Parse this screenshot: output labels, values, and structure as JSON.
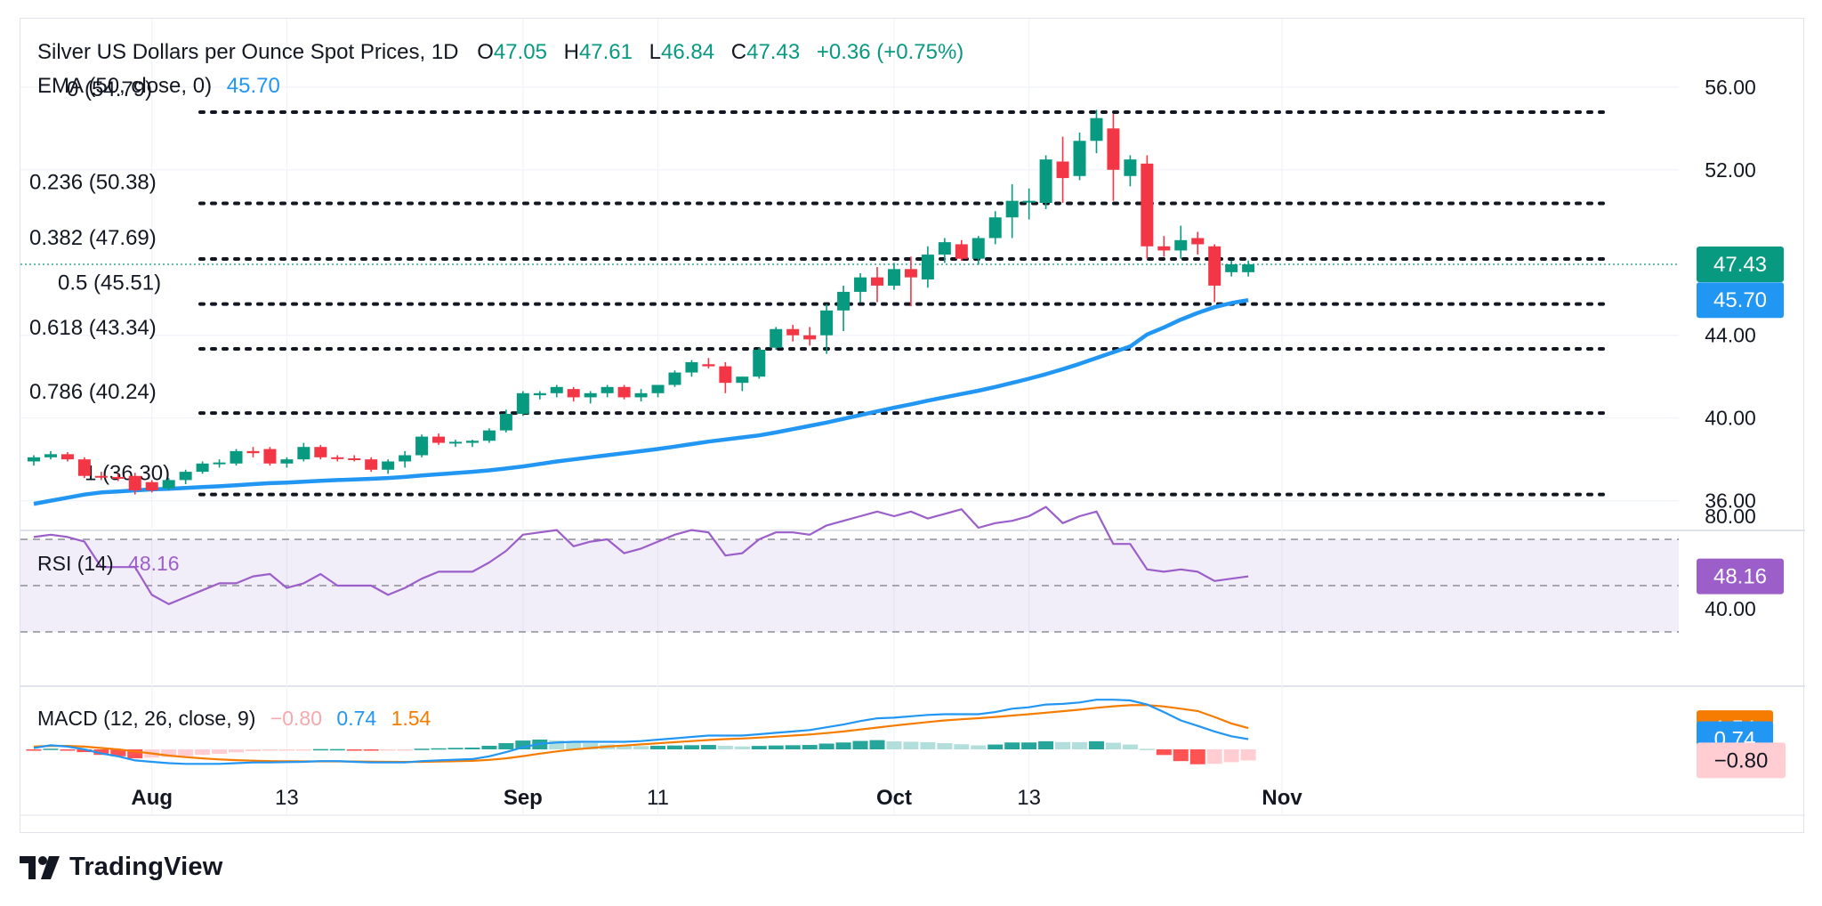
{
  "header": {
    "title": "Silver US Dollars per Ounce Spot Prices, 1D",
    "o_label": "O",
    "o_value": "47.05",
    "h_label": "H",
    "h_value": "47.61",
    "l_label": "L",
    "l_value": "46.84",
    "c_label": "C",
    "c_value": "47.43",
    "change": "+0.36 (+0.75%)",
    "ema_label": "EMA (50, close, 0)",
    "ema_value": "45.70"
  },
  "rsi_header": {
    "label": "RSI (14)",
    "value": "48.16"
  },
  "macd_header": {
    "label": "MACD (12, 26, close, 9)",
    "hist": "−0.80",
    "macd": "0.74",
    "signal": "1.54"
  },
  "brand": {
    "name": "TradingView"
  },
  "colors": {
    "up": "#089981",
    "down": "#f23645",
    "ema": "#2196f3",
    "rsi": "#9c5fc9",
    "macd": "#2196f3",
    "signal": "#f57c00",
    "hist_up_strong": "#26a69a",
    "hist_up_weak": "#b2dfdb",
    "hist_down_strong": "#ff5252",
    "hist_down_weak": "#ffcdd2"
  },
  "chart_data": {
    "type": "candlestick",
    "title": "Silver US Dollars per Ounce Spot Prices, 1D",
    "price_axis": {
      "ticks": [
        "56.00",
        "52.00",
        "44.00",
        "40.00",
        "36.00"
      ],
      "ylim": [
        34.5,
        57.5
      ]
    },
    "x_ticks": [
      {
        "label": "Aug",
        "bold": true,
        "index": 7
      },
      {
        "label": "13",
        "bold": false,
        "index": 15
      },
      {
        "label": "Sep",
        "bold": true,
        "index": 29
      },
      {
        "label": "11",
        "bold": false,
        "index": 37
      },
      {
        "label": "Oct",
        "bold": true,
        "index": 51
      },
      {
        "label": "13",
        "bold": false,
        "index": 59
      },
      {
        "label": "Nov",
        "bold": true,
        "index": 74
      }
    ],
    "candles": [
      [
        37.9,
        38.2,
        37.7,
        38.1
      ],
      [
        38.1,
        38.4,
        38.0,
        38.25
      ],
      [
        38.25,
        38.35,
        37.9,
        38.0
      ],
      [
        38.0,
        38.1,
        37.1,
        37.2
      ],
      [
        37.2,
        37.4,
        37.0,
        37.15
      ],
      [
        37.15,
        37.3,
        36.95,
        37.1
      ],
      [
        37.2,
        37.35,
        36.3,
        36.5
      ],
      [
        36.9,
        37.0,
        36.4,
        36.5
      ],
      [
        36.6,
        37.1,
        36.5,
        37.0
      ],
      [
        37.0,
        37.5,
        36.8,
        37.4
      ],
      [
        37.4,
        37.9,
        37.3,
        37.8
      ],
      [
        37.8,
        38.0,
        37.6,
        37.85
      ],
      [
        37.8,
        38.5,
        37.7,
        38.4
      ],
      [
        38.4,
        38.6,
        38.1,
        38.3
      ],
      [
        38.5,
        38.6,
        37.7,
        37.8
      ],
      [
        37.8,
        38.1,
        37.6,
        38.0
      ],
      [
        38.0,
        38.8,
        37.9,
        38.6
      ],
      [
        38.6,
        38.7,
        38.0,
        38.1
      ],
      [
        38.1,
        38.2,
        37.9,
        38.05
      ],
      [
        38.05,
        38.2,
        37.9,
        38.0
      ],
      [
        38.0,
        38.1,
        37.4,
        37.5
      ],
      [
        37.5,
        38.0,
        37.3,
        37.9
      ],
      [
        37.9,
        38.4,
        37.6,
        38.2
      ],
      [
        38.2,
        39.2,
        38.1,
        39.1
      ],
      [
        39.1,
        39.25,
        38.7,
        38.8
      ],
      [
        38.8,
        38.95,
        38.6,
        38.85
      ],
      [
        38.8,
        38.95,
        38.6,
        38.9
      ],
      [
        38.9,
        39.5,
        38.8,
        39.4
      ],
      [
        39.4,
        40.4,
        39.3,
        40.2
      ],
      [
        40.2,
        41.3,
        40.1,
        41.2
      ],
      [
        41.1,
        41.3,
        40.9,
        41.2
      ],
      [
        41.2,
        41.6,
        41.0,
        41.5
      ],
      [
        41.4,
        41.5,
        40.8,
        41.0
      ],
      [
        41.0,
        41.3,
        40.7,
        41.2
      ],
      [
        41.2,
        41.6,
        41.0,
        41.5
      ],
      [
        41.5,
        41.6,
        40.9,
        41.0
      ],
      [
        41.0,
        41.4,
        40.8,
        41.2
      ],
      [
        41.2,
        41.6,
        41.0,
        41.6
      ],
      [
        41.6,
        42.3,
        41.5,
        42.2
      ],
      [
        42.2,
        42.8,
        42.0,
        42.7
      ],
      [
        42.6,
        42.9,
        42.4,
        42.5
      ],
      [
        42.5,
        42.7,
        41.2,
        41.7
      ],
      [
        41.7,
        42.0,
        41.3,
        42.0
      ],
      [
        42.0,
        43.4,
        41.9,
        43.3
      ],
      [
        43.4,
        44.4,
        43.3,
        44.3
      ],
      [
        44.3,
        44.5,
        43.7,
        44.0
      ],
      [
        44.0,
        44.4,
        43.5,
        43.8
      ],
      [
        44.0,
        45.5,
        43.1,
        45.2
      ],
      [
        45.2,
        46.4,
        44.2,
        46.1
      ],
      [
        46.1,
        47.0,
        45.6,
        46.8
      ],
      [
        46.8,
        47.3,
        45.6,
        46.4
      ],
      [
        46.4,
        47.5,
        46.2,
        47.2
      ],
      [
        47.2,
        47.8,
        45.4,
        46.8
      ],
      [
        46.7,
        48.3,
        46.3,
        47.9
      ],
      [
        47.9,
        48.7,
        47.5,
        48.5
      ],
      [
        48.4,
        48.6,
        47.6,
        47.7
      ],
      [
        47.7,
        48.8,
        47.4,
        48.7
      ],
      [
        48.7,
        50.0,
        48.4,
        49.7
      ],
      [
        49.7,
        51.3,
        48.7,
        50.5
      ],
      [
        50.5,
        51.1,
        49.6,
        50.5
      ],
      [
        50.4,
        52.7,
        50.1,
        52.5
      ],
      [
        52.4,
        53.6,
        50.4,
        51.6
      ],
      [
        51.7,
        53.8,
        51.5,
        53.4
      ],
      [
        53.4,
        54.9,
        52.8,
        54.5
      ],
      [
        54.0,
        54.7,
        50.5,
        52.0
      ],
      [
        51.7,
        52.7,
        51.2,
        52.5
      ],
      [
        52.3,
        52.7,
        47.7,
        48.3
      ],
      [
        48.3,
        48.8,
        47.8,
        48.1
      ],
      [
        48.1,
        49.3,
        47.7,
        48.6
      ],
      [
        48.7,
        49.0,
        47.9,
        48.4
      ],
      [
        48.3,
        48.4,
        45.6,
        46.4
      ],
      [
        47.05,
        47.61,
        46.84,
        47.43
      ],
      [
        47.05,
        47.61,
        46.84,
        47.43
      ]
    ],
    "ema": {
      "name": "EMA (50, close, 0)",
      "last": 45.7,
      "values": [
        35.85,
        36.0,
        36.15,
        36.3,
        36.4,
        36.45,
        36.5,
        36.55,
        36.58,
        36.62,
        36.66,
        36.7,
        36.75,
        36.8,
        36.85,
        36.88,
        36.92,
        36.96,
        37.0,
        37.03,
        37.06,
        37.1,
        37.15,
        37.22,
        37.28,
        37.34,
        37.4,
        37.47,
        37.56,
        37.66,
        37.78,
        37.9,
        38.0,
        38.1,
        38.2,
        38.3,
        38.4,
        38.5,
        38.62,
        38.74,
        38.86,
        38.96,
        39.06,
        39.16,
        39.3,
        39.46,
        39.62,
        39.78,
        39.96,
        40.14,
        40.32,
        40.5,
        40.66,
        40.84,
        41.0,
        41.16,
        41.32,
        41.5,
        41.7,
        41.9,
        42.12,
        42.36,
        42.62,
        42.9,
        43.18,
        43.46,
        44.04,
        44.38,
        44.76,
        45.08,
        45.36,
        45.56,
        45.7
      ]
    },
    "fibonacci": [
      {
        "label": "0 (54.79)",
        "value": 54.79
      },
      {
        "label": "0.236 (50.38)",
        "value": 50.38
      },
      {
        "label": "0.382 (47.69)",
        "value": 47.69
      },
      {
        "label": "0.5 (45.51)",
        "value": 45.51
      },
      {
        "label": "0.618 (43.34)",
        "value": 43.34
      },
      {
        "label": "0.786 (40.24)",
        "value": 40.24
      },
      {
        "label": "1 (36.30)",
        "value": 36.3
      }
    ],
    "last_close_badge": "47.43",
    "ema_badge": "45.70",
    "rsi": {
      "name": "RSI (14)",
      "ylim": [
        30,
        90
      ],
      "ticks": [
        "80.00",
        "40.00"
      ],
      "bands": [
        70,
        50,
        30
      ],
      "badge": "48.16",
      "values": [
        71,
        72,
        71,
        69,
        58,
        58,
        58,
        46,
        42,
        45,
        48,
        51,
        51,
        54,
        55,
        49,
        51,
        55,
        50,
        50,
        50,
        46,
        49,
        53,
        56,
        56,
        56,
        60,
        65,
        72,
        73,
        74,
        67,
        69,
        70,
        64,
        66,
        69,
        72,
        74,
        73,
        63,
        64,
        70,
        73,
        73,
        72,
        76,
        78,
        80,
        82,
        80,
        82,
        79,
        81,
        83,
        75,
        77,
        78,
        80,
        84,
        77,
        80,
        82,
        68,
        68,
        57,
        56,
        57,
        56,
        52,
        53,
        54
      ]
    },
    "macd": {
      "name": "MACD (12, 26, close, 9)",
      "ylim": [
        -2.7,
        3.9
      ],
      "badges": [
        "1.54",
        "0.74",
        "−0.80"
      ],
      "macd_line": [
        0.1,
        0.3,
        0.2,
        0.0,
        -0.3,
        -0.5,
        -0.8,
        -0.9,
        -1.0,
        -1.05,
        -1.05,
        -1.05,
        -1.0,
        -0.95,
        -0.95,
        -0.92,
        -0.9,
        -0.85,
        -0.85,
        -0.9,
        -0.95,
        -0.95,
        -0.95,
        -0.85,
        -0.8,
        -0.75,
        -0.7,
        -0.5,
        -0.2,
        0.15,
        0.4,
        0.5,
        0.55,
        0.55,
        0.55,
        0.55,
        0.6,
        0.7,
        0.8,
        0.9,
        1.0,
        1.0,
        1.0,
        1.1,
        1.2,
        1.3,
        1.4,
        1.6,
        1.8,
        2.05,
        2.25,
        2.3,
        2.4,
        2.5,
        2.55,
        2.55,
        2.55,
        2.7,
        2.95,
        3.05,
        3.25,
        3.3,
        3.4,
        3.6,
        3.6,
        3.55,
        3.25,
        2.7,
        2.1,
        1.7,
        1.3,
        0.95,
        0.74
      ],
      "signal_line": [
        0.2,
        0.25,
        0.25,
        0.2,
        0.1,
        0.0,
        -0.15,
        -0.3,
        -0.45,
        -0.56,
        -0.65,
        -0.73,
        -0.78,
        -0.82,
        -0.85,
        -0.86,
        -0.87,
        -0.87,
        -0.87,
        -0.88,
        -0.89,
        -0.9,
        -0.91,
        -0.9,
        -0.88,
        -0.86,
        -0.83,
        -0.76,
        -0.65,
        -0.49,
        -0.31,
        -0.15,
        -0.01,
        0.1,
        0.2,
        0.28,
        0.36,
        0.44,
        0.52,
        0.6,
        0.68,
        0.74,
        0.79,
        0.85,
        0.92,
        1.0,
        1.08,
        1.18,
        1.3,
        1.44,
        1.58,
        1.72,
        1.85,
        1.98,
        2.1,
        2.18,
        2.26,
        2.35,
        2.45,
        2.55,
        2.66,
        2.77,
        2.88,
        3.01,
        3.12,
        3.2,
        3.21,
        3.11,
        2.95,
        2.78,
        2.35,
        1.88,
        1.54
      ],
      "histogram": [
        -0.1,
        0.05,
        -0.05,
        -0.2,
        -0.4,
        -0.5,
        -0.65,
        -0.6,
        -0.55,
        -0.49,
        -0.4,
        -0.32,
        -0.22,
        -0.13,
        -0.1,
        -0.06,
        -0.03,
        0.02,
        0.02,
        -0.02,
        -0.06,
        -0.05,
        -0.04,
        0.05,
        0.08,
        0.11,
        0.13,
        0.26,
        0.45,
        0.64,
        0.71,
        0.65,
        0.56,
        0.45,
        0.35,
        0.27,
        0.24,
        0.26,
        0.28,
        0.3,
        0.32,
        0.26,
        0.21,
        0.25,
        0.28,
        0.3,
        0.32,
        0.42,
        0.5,
        0.61,
        0.67,
        0.58,
        0.55,
        0.52,
        0.45,
        0.37,
        0.29,
        0.35,
        0.5,
        0.5,
        0.59,
        0.53,
        0.52,
        0.59,
        0.48,
        0.35,
        0.04,
        -0.41,
        -0.85,
        -1.08,
        -1.05,
        -0.93,
        -0.8
      ]
    }
  }
}
